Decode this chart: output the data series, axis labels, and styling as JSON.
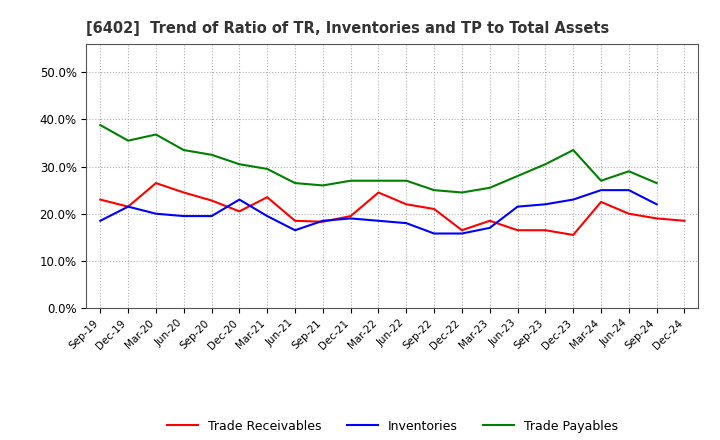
{
  "title": "[6402]  Trend of Ratio of TR, Inventories and TP to Total Assets",
  "x_labels": [
    "Sep-19",
    "Dec-19",
    "Mar-20",
    "Jun-20",
    "Sep-20",
    "Dec-20",
    "Mar-21",
    "Jun-21",
    "Sep-21",
    "Dec-21",
    "Mar-22",
    "Jun-22",
    "Sep-22",
    "Dec-22",
    "Mar-23",
    "Jun-23",
    "Sep-23",
    "Dec-23",
    "Mar-24",
    "Jun-24",
    "Sep-24",
    "Dec-24"
  ],
  "trade_receivables": [
    0.23,
    0.215,
    0.265,
    0.245,
    0.228,
    0.205,
    0.235,
    0.185,
    0.183,
    0.195,
    0.245,
    0.22,
    0.21,
    0.165,
    0.185,
    0.165,
    0.165,
    0.155,
    0.225,
    0.2,
    0.19,
    0.185
  ],
  "inventories": [
    0.185,
    0.215,
    0.2,
    0.195,
    0.195,
    0.23,
    0.195,
    0.165,
    0.185,
    0.19,
    0.185,
    0.18,
    0.158,
    0.158,
    0.17,
    0.215,
    0.22,
    0.23,
    0.25,
    0.25,
    0.22,
    null
  ],
  "trade_payables": [
    0.388,
    0.355,
    0.368,
    0.335,
    0.325,
    0.305,
    0.295,
    0.265,
    0.26,
    0.27,
    0.27,
    0.27,
    0.25,
    0.245,
    0.255,
    0.28,
    0.305,
    0.335,
    0.27,
    0.29,
    0.265,
    null
  ],
  "tr_color": "#ff0000",
  "inv_color": "#0000ff",
  "tp_color": "#008000",
  "ylim": [
    0.0,
    0.56
  ],
  "yticks": [
    0.0,
    0.1,
    0.2,
    0.3,
    0.4,
    0.5
  ],
  "background_color": "#ffffff",
  "grid_color": "#b0b0b0"
}
